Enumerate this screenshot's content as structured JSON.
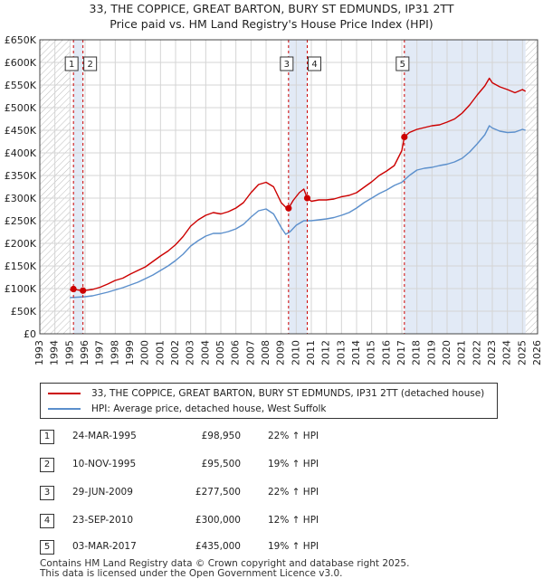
{
  "header": {
    "title_line1": "33, THE COPPICE, GREAT BARTON, BURY ST EDMUNDS, IP31 2TT",
    "title_line2": "Price paid vs. HM Land Registry's House Price Index (HPI)"
  },
  "colors": {
    "property": "#cc0000",
    "hpi": "#5b8fcc",
    "shade": "#dde6f4",
    "marker_border": "#333333"
  },
  "chart_data": {
    "type": "line",
    "xlim": [
      1993,
      2026
    ],
    "ylim": [
      0,
      650000
    ],
    "x_ticks": [
      "1993",
      "1994",
      "1995",
      "1996",
      "1997",
      "1998",
      "1999",
      "2000",
      "2001",
      "2002",
      "2003",
      "2004",
      "2005",
      "2006",
      "2007",
      "2008",
      "2009",
      "2010",
      "2011",
      "2012",
      "2013",
      "2014",
      "2015",
      "2016",
      "2017",
      "2018",
      "2019",
      "2020",
      "2021",
      "2022",
      "2023",
      "2024",
      "2025",
      "2026"
    ],
    "y_ticks": [
      {
        "value": 0,
        "label": "£0"
      },
      {
        "value": 50000,
        "label": "£50K"
      },
      {
        "value": 100000,
        "label": "£100K"
      },
      {
        "value": 150000,
        "label": "£150K"
      },
      {
        "value": 200000,
        "label": "£200K"
      },
      {
        "value": 250000,
        "label": "£250K"
      },
      {
        "value": 300000,
        "label": "£300K"
      },
      {
        "value": 350000,
        "label": "£350K"
      },
      {
        "value": 400000,
        "label": "£400K"
      },
      {
        "value": 450000,
        "label": "£450K"
      },
      {
        "value": 500000,
        "label": "£500K"
      },
      {
        "value": 550000,
        "label": "£550K"
      },
      {
        "value": 600000,
        "label": "£600K"
      },
      {
        "value": 650000,
        "label": "£650K"
      }
    ],
    "grid": true,
    "hatched_regions": [
      [
        1993.0,
        1995.0
      ],
      [
        2025.2,
        2026.0
      ]
    ],
    "shaded_regions": [
      [
        1995.23,
        1995.86
      ],
      [
        2009.49,
        2010.73
      ],
      [
        2017.17,
        2025.2
      ]
    ],
    "series": [
      {
        "name": "33, THE COPPICE, GREAT BARTON, BURY ST EDMUNDS, IP31 2TT (detached house)",
        "color": "#cc0000",
        "x": [
          1995.0,
          1995.23,
          1995.5,
          1995.86,
          1996.5,
          1997.0,
          1997.5,
          1998.0,
          1998.5,
          1999.0,
          1999.5,
          2000.0,
          2000.5,
          2001.0,
          2001.5,
          2002.0,
          2002.5,
          2003.0,
          2003.5,
          2004.0,
          2004.5,
          2005.0,
          2005.5,
          2006.0,
          2006.5,
          2007.0,
          2007.5,
          2008.0,
          2008.5,
          2009.0,
          2009.3,
          2009.49,
          2009.8,
          2010.2,
          2010.5,
          2010.73,
          2011.0,
          2011.5,
          2012.0,
          2012.5,
          2013.0,
          2013.5,
          2014.0,
          2014.5,
          2015.0,
          2015.5,
          2016.0,
          2016.5,
          2017.0,
          2017.17,
          2017.5,
          2018.0,
          2018.5,
          2019.0,
          2019.5,
          2020.0,
          2020.5,
          2021.0,
          2021.5,
          2022.0,
          2022.5,
          2022.8,
          2023.0,
          2023.5,
          2024.0,
          2024.5,
          2025.0,
          2025.2
        ],
        "y": [
          97000,
          98950,
          97000,
          95500,
          98000,
          103000,
          110000,
          118000,
          123000,
          132000,
          140000,
          148000,
          160000,
          172000,
          183000,
          197000,
          215000,
          238000,
          252000,
          262000,
          268000,
          265000,
          270000,
          278000,
          290000,
          312000,
          330000,
          335000,
          325000,
          290000,
          280000,
          277500,
          295000,
          312000,
          320000,
          300000,
          293000,
          296000,
          296000,
          298000,
          303000,
          306000,
          312000,
          324000,
          336000,
          350000,
          360000,
          372000,
          405000,
          435000,
          445000,
          452000,
          456000,
          460000,
          462000,
          468000,
          475000,
          488000,
          506000,
          528000,
          548000,
          565000,
          555000,
          546000,
          540000,
          533000,
          540000,
          536000
        ]
      },
      {
        "name": "HPI: Average price, detached house, West Suffolk",
        "color": "#5b8fcc",
        "x": [
          1995.0,
          1995.5,
          1996.0,
          1996.5,
          1997.0,
          1997.5,
          1998.0,
          1998.5,
          1999.0,
          1999.5,
          2000.0,
          2000.5,
          2001.0,
          2001.5,
          2002.0,
          2002.5,
          2003.0,
          2003.5,
          2004.0,
          2004.5,
          2005.0,
          2005.5,
          2006.0,
          2006.5,
          2007.0,
          2007.5,
          2008.0,
          2008.5,
          2009.0,
          2009.3,
          2009.6,
          2010.0,
          2010.5,
          2011.0,
          2011.5,
          2012.0,
          2012.5,
          2013.0,
          2013.5,
          2014.0,
          2014.5,
          2015.0,
          2015.5,
          2016.0,
          2016.5,
          2017.0,
          2017.5,
          2018.0,
          2018.5,
          2019.0,
          2019.5,
          2020.0,
          2020.5,
          2021.0,
          2021.5,
          2022.0,
          2022.5,
          2022.8,
          2023.0,
          2023.5,
          2024.0,
          2024.5,
          2025.0,
          2025.2
        ],
        "y": [
          80000,
          81000,
          82000,
          84000,
          88000,
          92000,
          97000,
          102000,
          108000,
          114000,
          122000,
          130000,
          140000,
          150000,
          162000,
          176000,
          194000,
          206000,
          216000,
          222000,
          222000,
          226000,
          232000,
          242000,
          258000,
          272000,
          276000,
          265000,
          235000,
          220000,
          226000,
          240000,
          250000,
          250000,
          252000,
          254000,
          257000,
          262000,
          268000,
          278000,
          290000,
          300000,
          310000,
          318000,
          328000,
          335000,
          350000,
          362000,
          366000,
          368000,
          372000,
          375000,
          380000,
          388000,
          402000,
          420000,
          440000,
          460000,
          455000,
          448000,
          445000,
          446000,
          452000,
          450000
        ]
      }
    ],
    "sales": [
      {
        "label": "1",
        "date": "24-MAR-1995",
        "x": 1995.23,
        "price": 98950,
        "price_label": "£98,950",
        "diff": "22% ↑ HPI"
      },
      {
        "label": "2",
        "date": "10-NOV-1995",
        "x": 1995.86,
        "price": 95500,
        "price_label": "£95,500",
        "diff": "19% ↑ HPI"
      },
      {
        "label": "3",
        "date": "29-JUN-2009",
        "x": 2009.49,
        "price": 277500,
        "price_label": "£277,500",
        "diff": "22% ↑ HPI"
      },
      {
        "label": "4",
        "date": "23-SEP-2010",
        "x": 2010.73,
        "price": 300000,
        "price_label": "£300,000",
        "diff": "12% ↑ HPI"
      },
      {
        "label": "5",
        "date": "03-MAR-2017",
        "x": 2017.17,
        "price": 435000,
        "price_label": "£435,000",
        "diff": "19% ↑ HPI"
      }
    ]
  },
  "legend": {
    "property_label": "33, THE COPPICE, GREAT BARTON, BURY ST EDMUNDS, IP31 2TT (detached house)",
    "hpi_label": "HPI: Average price, detached house, West Suffolk"
  },
  "footer": {
    "line1": "Contains HM Land Registry data © Crown copyright and database right 2025.",
    "line2": "This data is licensed under the Open Government Licence v3.0."
  }
}
